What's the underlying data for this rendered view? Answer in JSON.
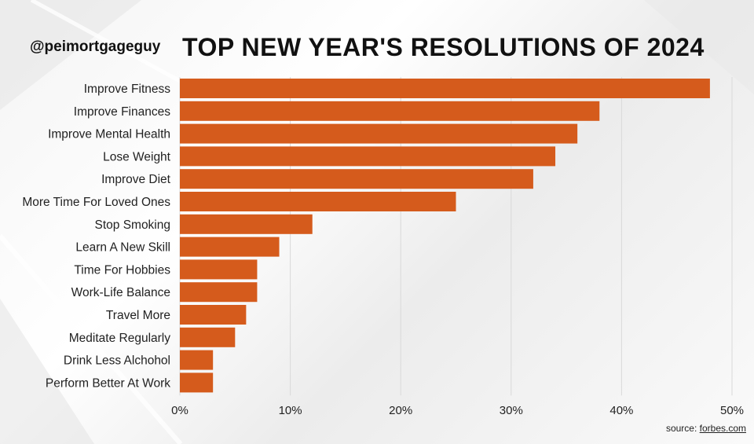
{
  "header": {
    "handle": "@peimortgageguy",
    "title": "TOP NEW YEAR'S RESOLUTIONS OF 2024"
  },
  "footer": {
    "source_prefix": "source: ",
    "source_link": "forbes.com"
  },
  "colors": {
    "bar": "#d55b1c",
    "grid": "#d9d9d9",
    "text": "#222222"
  },
  "chart_data": {
    "type": "bar",
    "orientation": "horizontal",
    "title": "TOP NEW YEAR'S RESOLUTIONS OF 2024",
    "categories": [
      "Improve Fitness",
      "Improve Finances",
      "Improve Mental Health",
      "Lose Weight",
      "Improve Diet",
      "More Time For Loved Ones",
      "Stop Smoking",
      "Learn A New Skill",
      "Time For Hobbies",
      "Work-Life Balance",
      "Travel More",
      "Meditate Regularly",
      "Drink Less Alchohol",
      "Perform Better At Work"
    ],
    "values": [
      48,
      38,
      36,
      34,
      32,
      25,
      12,
      9,
      7,
      7,
      6,
      5,
      3,
      3
    ],
    "xlim": [
      0,
      50
    ],
    "xticks": [
      0,
      10,
      20,
      30,
      40,
      50
    ],
    "xtick_labels": [
      "0%",
      "10%",
      "20%",
      "30%",
      "40%",
      "50%"
    ],
    "grid": "vertical",
    "legend": "none"
  }
}
